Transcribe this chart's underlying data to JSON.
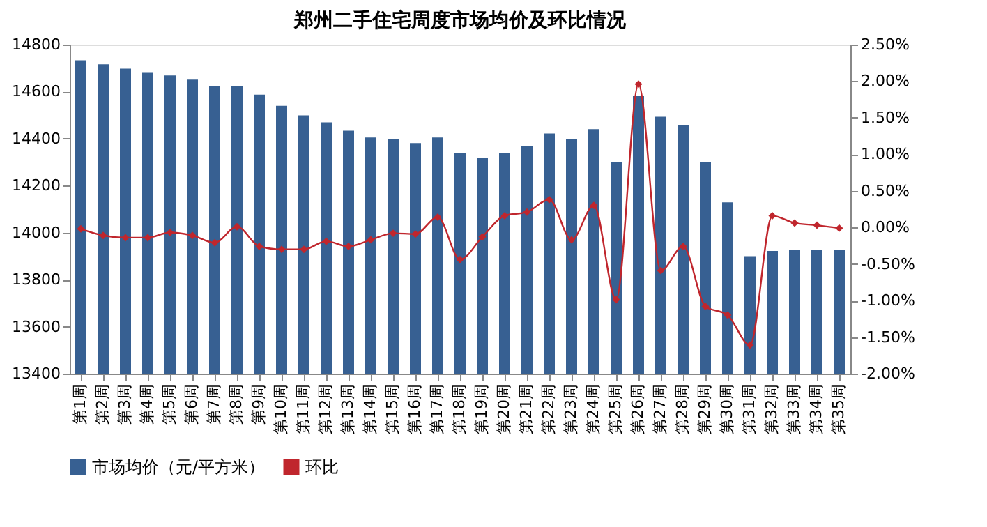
{
  "chart_data": {
    "type": "bar",
    "title": "郑州二手住宅周度市场均价及环比情况",
    "categories": [
      "第1周",
      "第2周",
      "第3周",
      "第4周",
      "第5周",
      "第6周",
      "第7周",
      "第8周",
      "第9周",
      "第10周",
      "第11周",
      "第12周",
      "第13周",
      "第14周",
      "第15周",
      "第16周",
      "第17周",
      "第18周",
      "第19周",
      "第20周",
      "第21周",
      "第22周",
      "第23周",
      "第24周",
      "第25周",
      "第26周",
      "第27周",
      "第28周",
      "第29周",
      "第30周",
      "第31周",
      "第32周",
      "第33周",
      "第34周",
      "第35周"
    ],
    "series": [
      {
        "name": "市场均价（元/平方米）",
        "color": "#376092",
        "values": [
          14733,
          14716,
          14698,
          14680,
          14669,
          14651,
          14622,
          14622,
          14587,
          14540,
          14499,
          14469,
          14434,
          14405,
          14399,
          14381,
          14405,
          14340,
          14317,
          14340,
          14370,
          14422,
          14399,
          14440,
          14299,
          14583,
          14493,
          14458,
          14299,
          14129,
          13900,
          13922,
          13928,
          13928,
          13928
        ]
      },
      {
        "name": "环比",
        "type": "line",
        "axis": "y2",
        "color": "#c0262d",
        "marker": "diamond",
        "line_style": "solid",
        "values": [
          -0.02,
          -0.11,
          -0.14,
          -0.14,
          -0.07,
          -0.11,
          -0.21,
          0.01,
          -0.26,
          -0.3,
          -0.3,
          -0.19,
          -0.26,
          -0.17,
          -0.08,
          -0.09,
          0.14,
          -0.44,
          -0.13,
          0.16,
          0.21,
          0.38,
          -0.17,
          0.3,
          -0.99,
          1.96,
          -0.59,
          -0.26,
          -1.08,
          -1.2,
          -1.61,
          0.16,
          0.06,
          0.03,
          -0.01
        ]
      }
    ],
    "ylim": [
      13400,
      14800
    ],
    "yticks": [
      13400,
      13600,
      13800,
      14000,
      14200,
      14400,
      14600,
      14800
    ],
    "y2lim": [
      -2.0,
      2.5
    ],
    "y2ticks": [
      {
        "value": -2.0,
        "label": "-2.00%"
      },
      {
        "value": -1.5,
        "label": "-1.50%"
      },
      {
        "value": -1.0,
        "label": "-1.00%"
      },
      {
        "value": -0.5,
        "label": "-0.50%"
      },
      {
        "value": 0,
        "label": "0.00%"
      },
      {
        "value": 0.5,
        "label": "0.50%"
      },
      {
        "value": 1.0,
        "label": "1.00%"
      },
      {
        "value": 1.5,
        "label": "1.50%"
      },
      {
        "value": 2.0,
        "label": "2.00%"
      },
      {
        "value": 2.5,
        "label": "2.50%"
      }
    ],
    "grid": false,
    "legend": "bottom"
  }
}
